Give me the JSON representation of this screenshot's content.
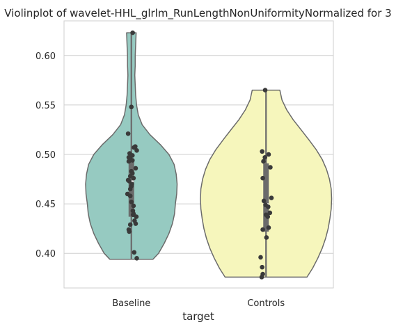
{
  "chart_data": {
    "type": "violin",
    "title": "Violinplot of wavelet-HHL_glrlm_RunLengthNonUniformityNormalized for 3",
    "xlabel": "target",
    "ylabel": "",
    "categories": [
      "Baseline",
      "Controls"
    ],
    "ylim": [
      0.365,
      0.635
    ],
    "yticks": [
      0.4,
      0.45,
      0.5,
      0.55,
      0.6
    ],
    "ytick_labels": [
      "0.40",
      "0.45",
      "0.50",
      "0.55",
      "0.60"
    ],
    "grid": true,
    "colors": {
      "Baseline": "#96cac1",
      "Controls": "#f6f6bc",
      "outline": "#6b6b6b",
      "box": "#6b6b6b",
      "points": "#3a3a3a",
      "grid": "#cfcfcf",
      "frame": "#cfcfcf"
    },
    "series": [
      {
        "name": "Baseline",
        "range": [
          0.394,
          0.623
        ],
        "box": {
          "q1": 0.437,
          "median": 0.473,
          "q3": 0.496
        },
        "violin_profile": [
          [
            0.394,
            0.5
          ],
          [
            0.4,
            0.63
          ],
          [
            0.41,
            0.76
          ],
          [
            0.42,
            0.87
          ],
          [
            0.43,
            0.95
          ],
          [
            0.44,
            1.0
          ],
          [
            0.45,
            1.02
          ],
          [
            0.46,
            1.05
          ],
          [
            0.47,
            1.06
          ],
          [
            0.48,
            1.04
          ],
          [
            0.49,
            0.99
          ],
          [
            0.5,
            0.87
          ],
          [
            0.51,
            0.67
          ],
          [
            0.52,
            0.43
          ],
          [
            0.53,
            0.25
          ],
          [
            0.54,
            0.16
          ],
          [
            0.55,
            0.12
          ],
          [
            0.56,
            0.1
          ],
          [
            0.57,
            0.09
          ],
          [
            0.58,
            0.08
          ],
          [
            0.59,
            0.09
          ],
          [
            0.6,
            0.09
          ],
          [
            0.61,
            0.1
          ],
          [
            0.623,
            0.11
          ]
        ],
        "points": [
          [
            0.06,
            0.623
          ],
          [
            0.0,
            0.548
          ],
          [
            -0.15,
            0.521
          ],
          [
            0.18,
            0.508
          ],
          [
            0.12,
            0.507
          ],
          [
            0.25,
            0.504
          ],
          [
            -0.08,
            0.501
          ],
          [
            0.05,
            0.499
          ],
          [
            -0.12,
            0.497
          ],
          [
            -0.05,
            0.496
          ],
          [
            0.05,
            0.494
          ],
          [
            -0.12,
            0.493
          ],
          [
            0.2,
            0.486
          ],
          [
            0.0,
            0.483
          ],
          [
            0.05,
            0.481
          ],
          [
            -0.05,
            0.478
          ],
          [
            0.1,
            0.476
          ],
          [
            -0.15,
            0.474
          ],
          [
            -0.1,
            0.473
          ],
          [
            0.02,
            0.47
          ],
          [
            0.0,
            0.468
          ],
          [
            -0.05,
            0.465
          ],
          [
            -0.18,
            0.46
          ],
          [
            -0.05,
            0.458
          ],
          [
            0.0,
            0.452
          ],
          [
            0.1,
            0.448
          ],
          [
            0.07,
            0.443
          ],
          [
            0.1,
            0.44
          ],
          [
            0.08,
            0.439
          ],
          [
            0.23,
            0.437
          ],
          [
            0.15,
            0.433
          ],
          [
            0.2,
            0.43
          ],
          [
            -0.05,
            0.429
          ],
          [
            -0.12,
            0.424
          ],
          [
            -0.1,
            0.422
          ],
          [
            0.13,
            0.401
          ],
          [
            0.25,
            0.395
          ]
        ]
      },
      {
        "name": "Controls",
        "range": [
          0.376,
          0.565
        ],
        "box": {
          "q1": 0.422,
          "median": 0.45,
          "q3": 0.491
        },
        "violin_profile": [
          [
            0.376,
            0.95
          ],
          [
            0.385,
            1.08
          ],
          [
            0.395,
            1.2
          ],
          [
            0.405,
            1.3
          ],
          [
            0.415,
            1.38
          ],
          [
            0.425,
            1.44
          ],
          [
            0.435,
            1.48
          ],
          [
            0.445,
            1.51
          ],
          [
            0.455,
            1.52
          ],
          [
            0.465,
            1.51
          ],
          [
            0.475,
            1.47
          ],
          [
            0.485,
            1.4
          ],
          [
            0.495,
            1.3
          ],
          [
            0.505,
            1.16
          ],
          [
            0.515,
            0.99
          ],
          [
            0.525,
            0.81
          ],
          [
            0.535,
            0.63
          ],
          [
            0.545,
            0.48
          ],
          [
            0.555,
            0.37
          ],
          [
            0.565,
            0.32
          ]
        ],
        "points": [
          [
            -0.04,
            0.565
          ],
          [
            -0.18,
            0.503
          ],
          [
            0.12,
            0.5
          ],
          [
            -0.05,
            0.497
          ],
          [
            -0.12,
            0.493
          ],
          [
            0.2,
            0.487
          ],
          [
            -0.15,
            0.476
          ],
          [
            0.25,
            0.456
          ],
          [
            -0.1,
            0.453
          ],
          [
            -0.02,
            0.449
          ],
          [
            0.1,
            0.447
          ],
          [
            0.18,
            0.441
          ],
          [
            0.0,
            0.439
          ],
          [
            0.08,
            0.437
          ],
          [
            0.12,
            0.426
          ],
          [
            -0.15,
            0.424
          ],
          [
            0.02,
            0.416
          ],
          [
            -0.25,
            0.396
          ],
          [
            -0.18,
            0.386
          ],
          [
            -0.15,
            0.379
          ],
          [
            -0.2,
            0.376
          ]
        ]
      }
    ]
  }
}
